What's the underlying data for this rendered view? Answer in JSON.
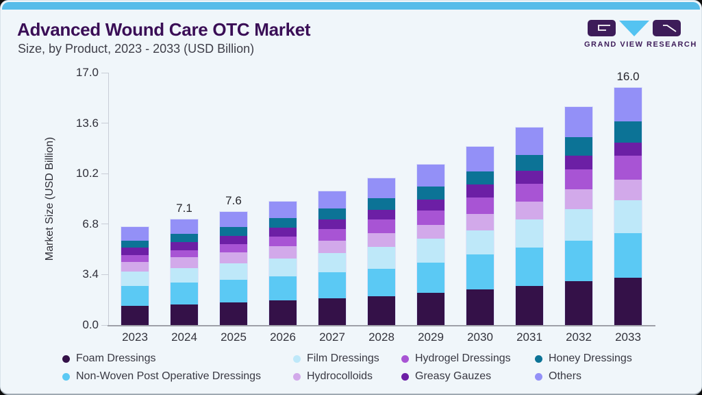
{
  "header": {
    "title": "Advanced Wound Care OTC Market",
    "subtitle": "Size, by Product, 2023 - 2033 (USD Billion)"
  },
  "logo": {
    "brand": "GRAND VIEW RESEARCH",
    "mark_purple": "#3D1C59",
    "mark_cyan": "#54C3F1"
  },
  "theme": {
    "card_background": "#F0F6FA",
    "top_accent": "#56BCE9",
    "title_color": "#3A0E56"
  },
  "chart_data": {
    "type": "bar",
    "stacked": true,
    "title": "Advanced Wound Care OTC Market Size, by Product, 2023 - 2033 (USD Billion)",
    "xlabel": "",
    "ylabel": "Market Size (USD Billion)",
    "ylim": [
      0,
      17
    ],
    "yticks": [
      0.0,
      3.4,
      6.8,
      10.2,
      13.6,
      17.0
    ],
    "ytick_labels": [
      "0.0",
      "3.4",
      "6.8",
      "10.2",
      "13.6",
      "17.0"
    ],
    "grid": false,
    "legend_position": "bottom",
    "categories": [
      "2023",
      "2024",
      "2025",
      "2026",
      "2027",
      "2028",
      "2029",
      "2030",
      "2031",
      "2032",
      "2033"
    ],
    "series": [
      {
        "name": "Foam Dressings",
        "color": "#341148",
        "values": [
          1.3,
          1.4,
          1.5,
          1.65,
          1.8,
          1.95,
          2.15,
          2.4,
          2.65,
          2.95,
          3.2
        ]
      },
      {
        "name": "Non-Woven Post Operative Dressings",
        "color": "#5BC9F4",
        "values": [
          1.35,
          1.45,
          1.55,
          1.65,
          1.75,
          1.85,
          2.05,
          2.35,
          2.55,
          2.75,
          3.0
        ]
      },
      {
        "name": "Film Dressings",
        "color": "#BEE8F9",
        "values": [
          0.95,
          1.0,
          1.1,
          1.2,
          1.3,
          1.45,
          1.6,
          1.6,
          1.9,
          2.1,
          2.2
        ]
      },
      {
        "name": "Hydrocolloids",
        "color": "#D2A9EA",
        "values": [
          0.65,
          0.7,
          0.75,
          0.8,
          0.85,
          0.95,
          0.95,
          1.15,
          1.2,
          1.35,
          1.4
        ]
      },
      {
        "name": "Hydrogel Dressings",
        "color": "#A854D4",
        "values": [
          0.45,
          0.5,
          0.55,
          0.65,
          0.75,
          0.9,
          0.95,
          1.1,
          1.2,
          1.35,
          1.6
        ]
      },
      {
        "name": "Greasy Gauzes",
        "color": "#6C1FA5",
        "values": [
          0.5,
          0.55,
          0.55,
          0.6,
          0.65,
          0.65,
          0.75,
          0.85,
          0.9,
          0.9,
          0.9
        ]
      },
      {
        "name": "Honey Dressings",
        "color": "#0C7396",
        "values": [
          0.5,
          0.55,
          0.6,
          0.65,
          0.75,
          0.8,
          0.9,
          0.9,
          1.05,
          1.25,
          1.4
        ]
      },
      {
        "name": "Others",
        "color": "#9390F7",
        "values": [
          0.9,
          0.95,
          1.0,
          1.1,
          1.15,
          1.35,
          1.45,
          1.65,
          1.85,
          2.05,
          2.3
        ]
      }
    ],
    "totals": [
      6.6,
      7.1,
      7.6,
      8.3,
      9.0,
      9.9,
      10.8,
      12.0,
      13.3,
      14.7,
      16.0
    ],
    "total_labels": [
      "",
      "7.1",
      "7.6",
      "",
      "",
      "",
      "",
      "",
      "",
      "",
      "16.0"
    ],
    "legend_order": [
      "Foam Dressings",
      "Film Dressings",
      "Hydrogel Dressings",
      "Honey Dressings",
      "Non-Woven Post Operative Dressings",
      "Hydrocolloids",
      "Greasy Gauzes",
      "Others"
    ]
  }
}
